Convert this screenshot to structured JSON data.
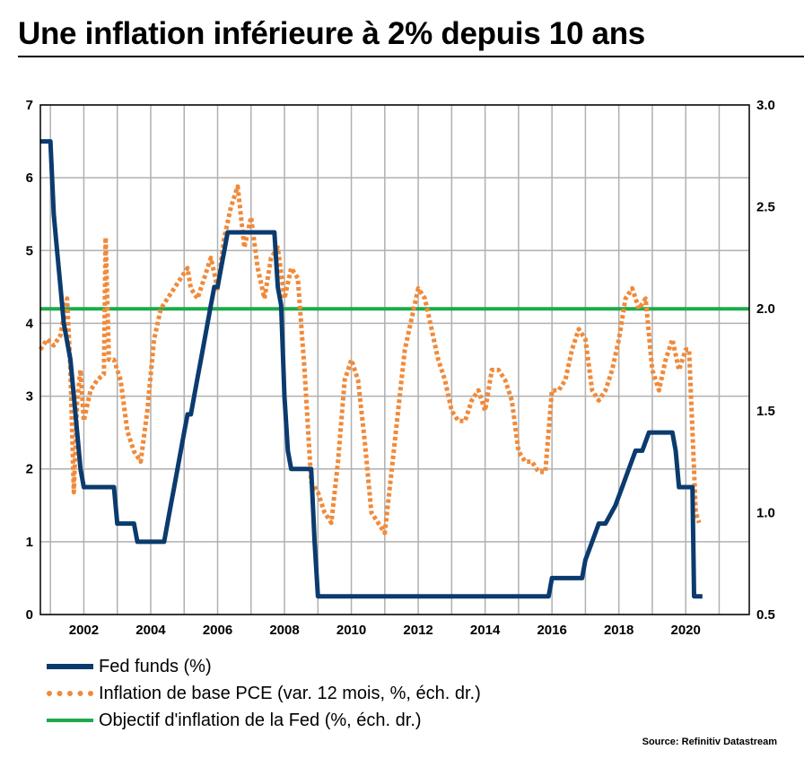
{
  "title": "Une inflation inférieure à 2% depuis 10 ans",
  "source": "Source: Refinitiv Datastream",
  "colors": {
    "fed": "#0b3b6e",
    "pce": "#f08a3a",
    "target": "#1daa4a",
    "grid": "#b0b0b0"
  },
  "chart_data": {
    "type": "line",
    "xlim": [
      2000.7,
      2021.9
    ],
    "x_ticks": [
      "2002",
      "2004",
      "2006",
      "2008",
      "2010",
      "2012",
      "2014",
      "2016",
      "2018",
      "2020"
    ],
    "y_left": {
      "lim": [
        0,
        7
      ],
      "ticks": [
        "0",
        "1",
        "2",
        "3",
        "4",
        "5",
        "6",
        "7"
      ]
    },
    "y_right": {
      "lim": [
        0.5,
        3.0
      ],
      "ticks": [
        "0.5",
        "1.0",
        "1.5",
        "2.0",
        "2.5",
        "3.0"
      ]
    },
    "grid": true,
    "legend_position": "bottom-left",
    "series": [
      {
        "name": "Fed funds (%)",
        "axis": "left",
        "style": "solid",
        "x": [
          2000.7,
          2001.0,
          2001.1,
          2001.2,
          2001.3,
          2001.4,
          2001.5,
          2001.6,
          2001.7,
          2001.8,
          2001.9,
          2002.0,
          2002.9,
          2003.0,
          2003.5,
          2003.6,
          2004.4,
          2004.5,
          2004.6,
          2004.7,
          2004.8,
          2004.9,
          2005.0,
          2005.1,
          2005.2,
          2005.3,
          2005.4,
          2005.5,
          2005.6,
          2005.7,
          2005.8,
          2005.9,
          2006.0,
          2006.1,
          2006.2,
          2006.3,
          2006.4,
          2006.5,
          2007.7,
          2007.8,
          2007.9,
          2008.0,
          2008.1,
          2008.2,
          2008.3,
          2008.8,
          2008.9,
          2009.0,
          2015.9,
          2016.0,
          2016.9,
          2017.0,
          2017.2,
          2017.4,
          2017.6,
          2017.9,
          2018.1,
          2018.3,
          2018.5,
          2018.7,
          2018.9,
          2019.0,
          2019.6,
          2019.7,
          2019.8,
          2020.2,
          2020.25,
          2020.5
        ],
        "y": [
          6.5,
          6.5,
          5.5,
          5.0,
          4.5,
          4.0,
          3.75,
          3.5,
          3.0,
          2.5,
          2.0,
          1.75,
          1.75,
          1.25,
          1.25,
          1.0,
          1.0,
          1.25,
          1.5,
          1.75,
          2.0,
          2.25,
          2.5,
          2.75,
          2.75,
          3.0,
          3.25,
          3.5,
          3.75,
          4.0,
          4.25,
          4.5,
          4.5,
          4.75,
          5.0,
          5.25,
          5.25,
          5.25,
          5.25,
          4.5,
          4.25,
          3.0,
          2.25,
          2.0,
          2.0,
          2.0,
          1.0,
          0.25,
          0.25,
          0.5,
          0.5,
          0.75,
          1.0,
          1.25,
          1.25,
          1.5,
          1.75,
          2.0,
          2.25,
          2.25,
          2.5,
          2.5,
          2.5,
          2.25,
          1.75,
          1.75,
          0.25,
          0.25
        ]
      },
      {
        "name": "Inflation de base PCE (var. 12 mois, %, éch. dr.)",
        "axis": "right",
        "style": "dotted",
        "x": [
          2000.7,
          2000.9,
          2001.1,
          2001.3,
          2001.5,
          2001.6,
          2001.7,
          2001.8,
          2001.9,
          2002.0,
          2002.2,
          2002.4,
          2002.6,
          2002.65,
          2002.75,
          2002.9,
          2003.1,
          2003.3,
          2003.5,
          2003.7,
          2003.9,
          2004.1,
          2004.3,
          2004.5,
          2004.7,
          2004.9,
          2005.1,
          2005.2,
          2005.4,
          2005.6,
          2005.8,
          2006.0,
          2006.2,
          2006.4,
          2006.6,
          2006.8,
          2007.0,
          2007.2,
          2007.4,
          2007.6,
          2007.8,
          2008.0,
          2008.2,
          2008.4,
          2008.6,
          2008.8,
          2009.0,
          2009.2,
          2009.4,
          2009.6,
          2009.8,
          2010.0,
          2010.2,
          2010.4,
          2010.6,
          2010.8,
          2011.0,
          2011.2,
          2011.4,
          2011.6,
          2011.8,
          2012.0,
          2012.2,
          2012.4,
          2012.6,
          2012.8,
          2013.0,
          2013.2,
          2013.4,
          2013.6,
          2013.8,
          2014.0,
          2014.2,
          2014.4,
          2014.6,
          2014.8,
          2015.0,
          2015.2,
          2015.4,
          2015.6,
          2015.8,
          2016.0,
          2016.2,
          2016.4,
          2016.6,
          2016.8,
          2017.0,
          2017.2,
          2017.4,
          2017.6,
          2017.8,
          2018.0,
          2018.2,
          2018.4,
          2018.6,
          2018.8,
          2019.0,
          2019.2,
          2019.4,
          2019.6,
          2019.8,
          2020.0,
          2020.1,
          2020.2,
          2020.3,
          2020.4
        ],
        "y": [
          1.8,
          1.85,
          1.82,
          1.87,
          2.05,
          1.7,
          1.1,
          1.55,
          1.7,
          1.45,
          1.6,
          1.65,
          1.68,
          2.35,
          1.75,
          1.75,
          1.65,
          1.4,
          1.3,
          1.25,
          1.5,
          1.85,
          2.0,
          2.05,
          2.1,
          2.15,
          2.2,
          2.1,
          2.05,
          2.15,
          2.25,
          2.1,
          2.35,
          2.5,
          2.6,
          2.3,
          2.45,
          2.2,
          2.05,
          2.25,
          2.3,
          2.05,
          2.2,
          2.15,
          1.7,
          1.15,
          1.1,
          1.0,
          0.95,
          1.25,
          1.65,
          1.75,
          1.65,
          1.35,
          1.0,
          0.95,
          0.9,
          1.2,
          1.5,
          1.8,
          1.95,
          2.1,
          2.05,
          1.9,
          1.75,
          1.65,
          1.5,
          1.45,
          1.45,
          1.55,
          1.6,
          1.5,
          1.7,
          1.7,
          1.65,
          1.55,
          1.3,
          1.25,
          1.25,
          1.2,
          1.2,
          1.6,
          1.6,
          1.65,
          1.8,
          1.9,
          1.85,
          1.6,
          1.55,
          1.6,
          1.7,
          1.85,
          2.05,
          2.1,
          2.0,
          2.05,
          1.7,
          1.6,
          1.75,
          1.85,
          1.7,
          1.8,
          1.8,
          1.4,
          1.0,
          0.95
        ]
      },
      {
        "name": "Objectif d'inflation de la Fed (%, éch. dr.)",
        "axis": "right",
        "style": "solid",
        "x": [
          2000.7,
          2021.9
        ],
        "y": [
          2.0,
          2.0
        ]
      }
    ]
  }
}
